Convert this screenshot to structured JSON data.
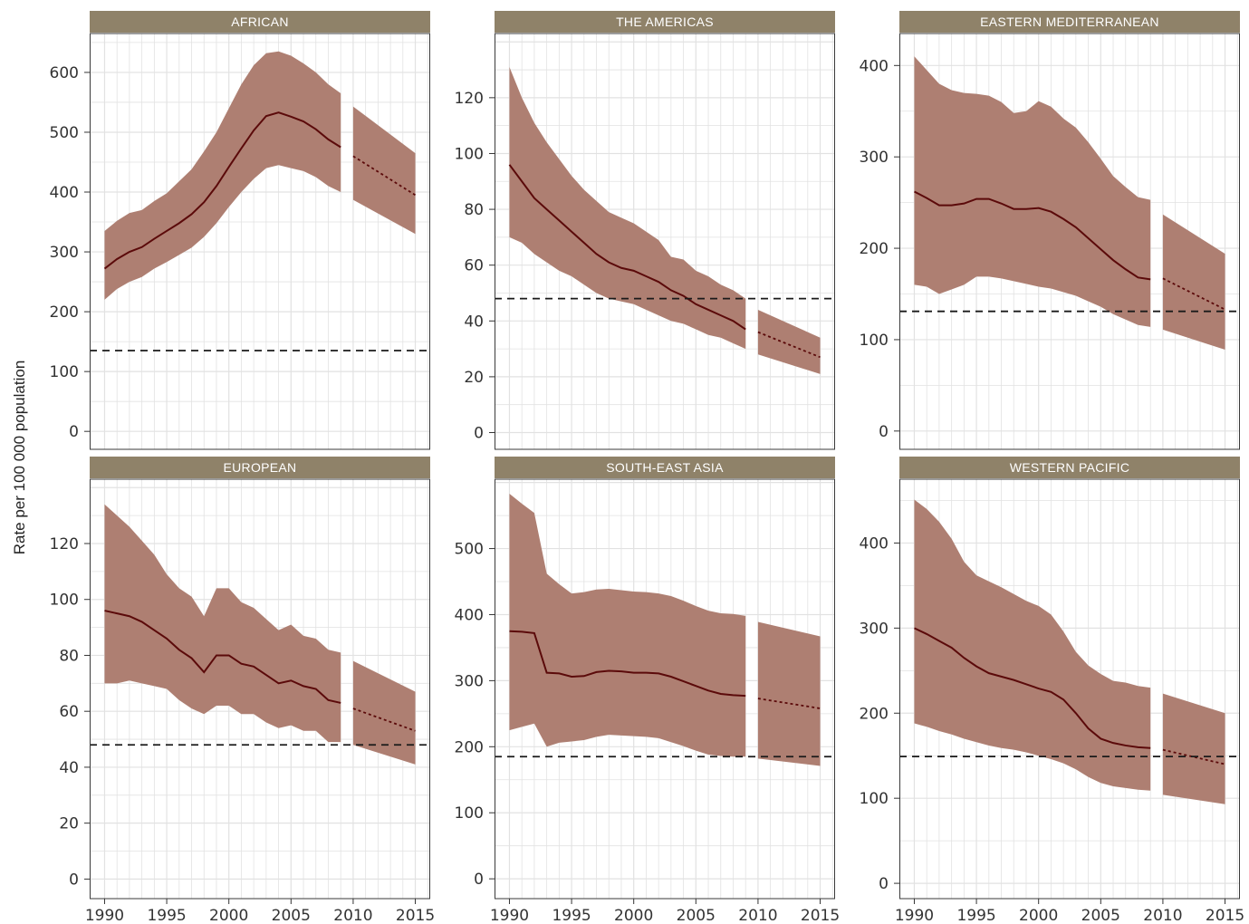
{
  "y_axis_label": "Rate per 100 000 population",
  "colors": {
    "band": "#ae7f72",
    "line": "#5b0a0a",
    "strip": "#8f8269",
    "grid": "#e2e2e2",
    "target": "#1a1a1a"
  },
  "chart_data": [
    {
      "type": "line",
      "title": "AFRICAN",
      "x": [
        1990,
        1991,
        1992,
        1993,
        1994,
        1995,
        1996,
        1997,
        1998,
        1999,
        2000,
        2001,
        2002,
        2003,
        2004,
        2005,
        2006,
        2007,
        2008,
        2009
      ],
      "y": [
        272,
        288,
        300,
        308,
        322,
        335,
        348,
        363,
        383,
        410,
        442,
        473,
        503,
        527,
        533,
        526,
        518,
        505,
        488,
        475
      ],
      "lower": [
        220,
        238,
        250,
        258,
        272,
        283,
        295,
        307,
        325,
        348,
        375,
        400,
        422,
        440,
        445,
        440,
        435,
        425,
        410,
        400
      ],
      "upper": [
        335,
        352,
        365,
        370,
        385,
        398,
        418,
        438,
        468,
        500,
        540,
        580,
        612,
        632,
        635,
        628,
        615,
        600,
        580,
        565
      ],
      "projection": {
        "x": [
          2010,
          2015
        ],
        "y": [
          460,
          395
        ],
        "lower": [
          387,
          330
        ],
        "upper": [
          543,
          465
        ]
      },
      "target": 135,
      "ylim": [
        -30,
        665
      ],
      "yticks": [
        0,
        100,
        200,
        300,
        400,
        500,
        600
      ],
      "xlim": [
        1988.8,
        2016.2
      ],
      "xticks": [
        1990,
        1995,
        2000,
        2005,
        2010,
        2015
      ],
      "show_xticks": false
    },
    {
      "type": "line",
      "title": "THE AMERICAS",
      "x": [
        1990,
        1991,
        1992,
        1993,
        1994,
        1995,
        1996,
        1997,
        1998,
        1999,
        2000,
        2001,
        2002,
        2003,
        2004,
        2005,
        2006,
        2007,
        2008,
        2009
      ],
      "y": [
        96,
        90,
        84,
        80,
        76,
        72,
        68,
        64,
        61,
        59,
        58,
        56,
        54,
        51,
        49,
        46,
        44,
        42,
        40,
        37
      ],
      "lower": [
        70,
        68,
        64,
        61,
        58,
        56,
        53,
        50,
        48,
        47,
        46,
        44,
        42,
        40,
        39,
        37,
        35,
        34,
        32,
        30
      ],
      "upper": [
        131,
        120,
        111,
        104,
        98,
        92,
        87,
        83,
        79,
        77,
        75,
        72,
        69,
        63,
        62,
        58,
        56,
        53,
        51,
        48
      ],
      "projection": {
        "x": [
          2010,
          2015
        ],
        "y": [
          36,
          27
        ],
        "lower": [
          28,
          21
        ],
        "upper": [
          44,
          34
        ]
      },
      "target": 48,
      "ylim": [
        -6,
        143
      ],
      "yticks": [
        0,
        20,
        40,
        60,
        80,
        100,
        120
      ],
      "xlim": [
        1988.8,
        2016.2
      ],
      "xticks": [
        1990,
        1995,
        2000,
        2005,
        2010,
        2015
      ],
      "show_xticks": false
    },
    {
      "type": "line",
      "title": "EASTERN MEDITERRANEAN",
      "x": [
        1990,
        1991,
        1992,
        1993,
        1994,
        1995,
        1996,
        1997,
        1998,
        1999,
        2000,
        2001,
        2002,
        2003,
        2004,
        2005,
        2006,
        2007,
        2008,
        2009
      ],
      "y": [
        262,
        255,
        247,
        247,
        249,
        254,
        254,
        249,
        243,
        243,
        244,
        240,
        232,
        223,
        211,
        199,
        187,
        177,
        168,
        166
      ],
      "lower": [
        160,
        158,
        150,
        155,
        160,
        169,
        169,
        167,
        164,
        161,
        158,
        156,
        152,
        148,
        142,
        136,
        128,
        122,
        116,
        114
      ],
      "upper": [
        410,
        395,
        380,
        373,
        370,
        369,
        367,
        360,
        348,
        350,
        361,
        355,
        342,
        332,
        316,
        298,
        279,
        267,
        256,
        253
      ],
      "projection": {
        "x": [
          2010,
          2015
        ],
        "y": [
          167,
          133
        ],
        "lower": [
          111,
          89
        ],
        "upper": [
          237,
          194
        ]
      },
      "target": 131,
      "ylim": [
        -20,
        435
      ],
      "yticks": [
        0,
        100,
        200,
        300,
        400
      ],
      "xlim": [
        1988.8,
        2016.2
      ],
      "xticks": [
        1990,
        1995,
        2000,
        2005,
        2010,
        2015
      ],
      "show_xticks": false
    },
    {
      "type": "line",
      "title": "EUROPEAN",
      "x": [
        1990,
        1991,
        1992,
        1993,
        1994,
        1995,
        1996,
        1997,
        1998,
        1999,
        2000,
        2001,
        2002,
        2003,
        2004,
        2005,
        2006,
        2007,
        2008,
        2009
      ],
      "y": [
        96,
        95,
        94,
        92,
        89,
        86,
        82,
        79,
        74,
        80,
        80,
        77,
        76,
        73,
        70,
        71,
        69,
        68,
        64,
        63
      ],
      "lower": [
        70,
        70,
        71,
        70,
        69,
        68,
        64,
        61,
        59,
        62,
        62,
        59,
        59,
        56,
        54,
        55,
        53,
        53,
        49,
        49
      ],
      "upper": [
        134,
        130,
        126,
        121,
        116,
        109,
        104,
        101,
        94,
        104,
        104,
        99,
        97,
        93,
        89,
        91,
        87,
        86,
        82,
        81
      ],
      "projection": {
        "x": [
          2010,
          2015
        ],
        "y": [
          61,
          53
        ],
        "lower": [
          48,
          41
        ],
        "upper": [
          78,
          67
        ]
      },
      "target": 48,
      "ylim": [
        -7,
        143
      ],
      "yticks": [
        0,
        20,
        40,
        60,
        80,
        100,
        120
      ],
      "xlim": [
        1988.8,
        2016.2
      ],
      "xticks": [
        1990,
        1995,
        2000,
        2005,
        2010,
        2015
      ],
      "show_xticks": true
    },
    {
      "type": "line",
      "title": "SOUTH-EAST ASIA",
      "x": [
        1990,
        1991,
        1992,
        1993,
        1994,
        1995,
        1996,
        1997,
        1998,
        1999,
        2000,
        2001,
        2002,
        2003,
        2004,
        2005,
        2006,
        2007,
        2008,
        2009
      ],
      "y": [
        375,
        374,
        372,
        312,
        311,
        306,
        307,
        313,
        315,
        314,
        312,
        312,
        311,
        306,
        299,
        292,
        285,
        280,
        278,
        277
      ],
      "lower": [
        225,
        230,
        235,
        200,
        206,
        208,
        210,
        215,
        218,
        217,
        216,
        215,
        213,
        207,
        201,
        194,
        188,
        186,
        185,
        185
      ],
      "upper": [
        583,
        568,
        554,
        462,
        446,
        432,
        434,
        438,
        439,
        437,
        435,
        434,
        432,
        428,
        421,
        413,
        406,
        402,
        401,
        398
      ],
      "projection": {
        "x": [
          2010,
          2015
        ],
        "y": [
          273,
          258
        ],
        "lower": [
          182,
          171
        ],
        "upper": [
          389,
          367
        ]
      },
      "target": 185,
      "ylim": [
        -30,
        605
      ],
      "yticks": [
        0,
        100,
        200,
        300,
        400,
        500
      ],
      "xlim": [
        1988.8,
        2016.2
      ],
      "xticks": [
        1990,
        1995,
        2000,
        2005,
        2010,
        2015
      ],
      "show_xticks": true
    },
    {
      "type": "line",
      "title": "WESTERN PACIFIC",
      "x": [
        1990,
        1991,
        1992,
        1993,
        1994,
        1995,
        1996,
        1997,
        1998,
        1999,
        2000,
        2001,
        2002,
        2003,
        2004,
        2005,
        2006,
        2007,
        2008,
        2009
      ],
      "y": [
        300,
        293,
        285,
        277,
        265,
        255,
        247,
        243,
        239,
        234,
        229,
        225,
        216,
        200,
        182,
        170,
        165,
        162,
        160,
        159
      ],
      "lower": [
        188,
        184,
        179,
        175,
        170,
        166,
        162,
        159,
        157,
        154,
        150,
        146,
        141,
        134,
        125,
        118,
        114,
        112,
        110,
        109
      ],
      "upper": [
        451,
        440,
        425,
        405,
        378,
        362,
        355,
        348,
        340,
        332,
        326,
        316,
        296,
        272,
        256,
        246,
        238,
        236,
        232,
        230
      ],
      "projection": {
        "x": [
          2010,
          2015
        ],
        "y": [
          157,
          140
        ],
        "lower": [
          104,
          93
        ],
        "upper": [
          223,
          200
        ]
      },
      "target": 149,
      "ylim": [
        -18,
        475
      ],
      "yticks": [
        0,
        100,
        200,
        300,
        400
      ],
      "xlim": [
        1988.8,
        2016.2
      ],
      "xticks": [
        1990,
        1995,
        2000,
        2005,
        2010,
        2015
      ],
      "show_xticks": true
    }
  ]
}
